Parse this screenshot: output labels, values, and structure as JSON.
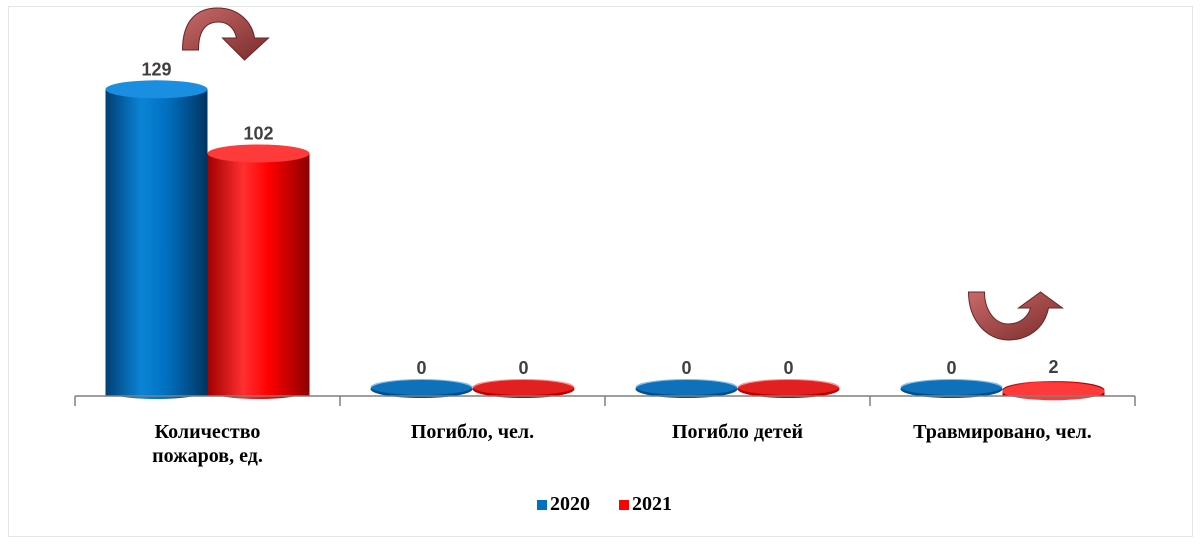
{
  "chart_data": {
    "type": "bar",
    "title": "",
    "xlabel": "",
    "ylabel": "",
    "categories": [
      [
        "Количество",
        "пожаров, ед."
      ],
      [
        "Погибло, чел."
      ],
      [
        "Погибло детей"
      ],
      [
        "Травмировано, чел."
      ]
    ],
    "series": [
      {
        "name": "2020",
        "values": [
          129,
          0,
          0,
          0
        ],
        "color": "#0070c0"
      },
      {
        "name": "2021",
        "values": [
          102,
          0,
          0,
          2
        ],
        "color": "#ff0000"
      }
    ],
    "ylim": [
      0,
      135
    ],
    "grid": false,
    "legend_position": "bottom",
    "annotations": [
      {
        "type": "arrow-icon",
        "name": "down-trend-arrow-icon",
        "category_index": 0,
        "direction": "down",
        "color": "#a04040"
      },
      {
        "type": "arrow-icon",
        "name": "up-trend-arrow-icon",
        "category_index": 3,
        "direction": "up",
        "color": "#a04040"
      }
    ]
  }
}
